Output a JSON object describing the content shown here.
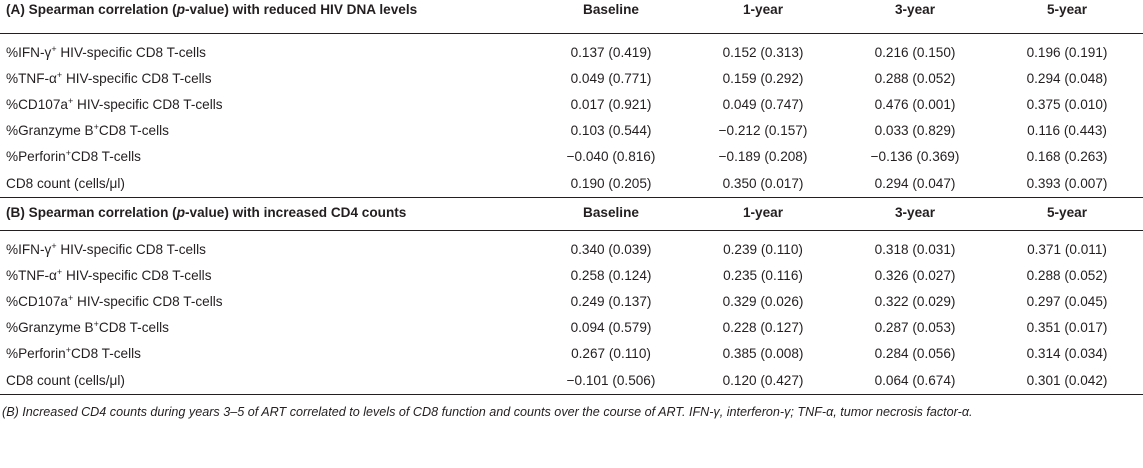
{
  "sections": [
    {
      "title_prefix": "(A) Spearman correlation (",
      "title_italic": "p",
      "title_suffix": "-value) with reduced HIV DNA levels",
      "columns": [
        "Baseline",
        "1-year",
        "3-year",
        "5-year"
      ],
      "rows": [
        {
          "pre": "%IFN-γ",
          "sup": "+",
          "post": " HIV-specific CD8 T-cells",
          "values": [
            "0.137 (0.419)",
            "0.152 (0.313)",
            "0.216 (0.150)",
            "0.196 (0.191)"
          ]
        },
        {
          "pre": "%TNF-α",
          "sup": "+",
          "post": " HIV-specific CD8 T-cells",
          "values": [
            "0.049 (0.771)",
            "0.159 (0.292)",
            "0.288 (0.052)",
            "0.294 (0.048)"
          ]
        },
        {
          "pre": "%CD107a",
          "sup": "+",
          "post": " HIV-specific CD8 T-cells",
          "values": [
            "0.017 (0.921)",
            "0.049 (0.747)",
            "0.476 (0.001)",
            "0.375 (0.010)"
          ]
        },
        {
          "pre": "%Granzyme B",
          "sup": "+",
          "post": "CD8 T-cells",
          "values": [
            "0.103 (0.544)",
            "−0.212 (0.157)",
            "0.033 (0.829)",
            "0.116 (0.443)"
          ]
        },
        {
          "pre": "%Perforin",
          "sup": "+",
          "post": "CD8 T-cells",
          "values": [
            "−0.040 (0.816)",
            "−0.189 (0.208)",
            "−0.136 (0.369)",
            "0.168 (0.263)"
          ]
        },
        {
          "pre": "CD8 count (cells/μl)",
          "sup": "",
          "post": "",
          "values": [
            "0.190 (0.205)",
            "0.350 (0.017)",
            "0.294 (0.047)",
            "0.393 (0.007)"
          ]
        }
      ]
    },
    {
      "title_prefix": "(B) Spearman correlation (",
      "title_italic": "p",
      "title_suffix": "-value) with increased CD4 counts",
      "columns": [
        "Baseline",
        "1-year",
        "3-year",
        "5-year"
      ],
      "rows": [
        {
          "pre": "%IFN-γ",
          "sup": "+",
          "post": " HIV-specific CD8 T-cells",
          "values": [
            "0.340 (0.039)",
            "0.239 (0.110)",
            "0.318 (0.031)",
            "0.371 (0.011)"
          ]
        },
        {
          "pre": "%TNF-α",
          "sup": "+",
          "post": " HIV-specific CD8 T-cells",
          "values": [
            "0.258 (0.124)",
            "0.235 (0.116)",
            "0.326 (0.027)",
            "0.288 (0.052)"
          ]
        },
        {
          "pre": "%CD107a",
          "sup": "+",
          "post": " HIV-specific CD8 T-cells",
          "values": [
            "0.249 (0.137)",
            "0.329 (0.026)",
            "0.322 (0.029)",
            "0.297 (0.045)"
          ]
        },
        {
          "pre": "%Granzyme B",
          "sup": "+",
          "post": "CD8 T-cells",
          "values": [
            "0.094 (0.579)",
            "0.228 (0.127)",
            "0.287 (0.053)",
            "0.351 (0.017)"
          ]
        },
        {
          "pre": "%Perforin",
          "sup": "+",
          "post": "CD8 T-cells",
          "values": [
            "0.267 (0.110)",
            "0.385 (0.008)",
            "0.284 (0.056)",
            "0.314 (0.034)"
          ]
        },
        {
          "pre": "CD8 count (cells/μl)",
          "sup": "",
          "post": "",
          "values": [
            "−0.101 (0.506)",
            "0.120 (0.427)",
            "0.064 (0.674)",
            "0.301 (0.042)"
          ]
        }
      ]
    }
  ],
  "footnote": "(B) Increased CD4 counts during years 3–5 of ART correlated to levels of CD8 function and counts over the course of ART. IFN-γ, interferon-γ; TNF-α, tumor necrosis factor-α."
}
